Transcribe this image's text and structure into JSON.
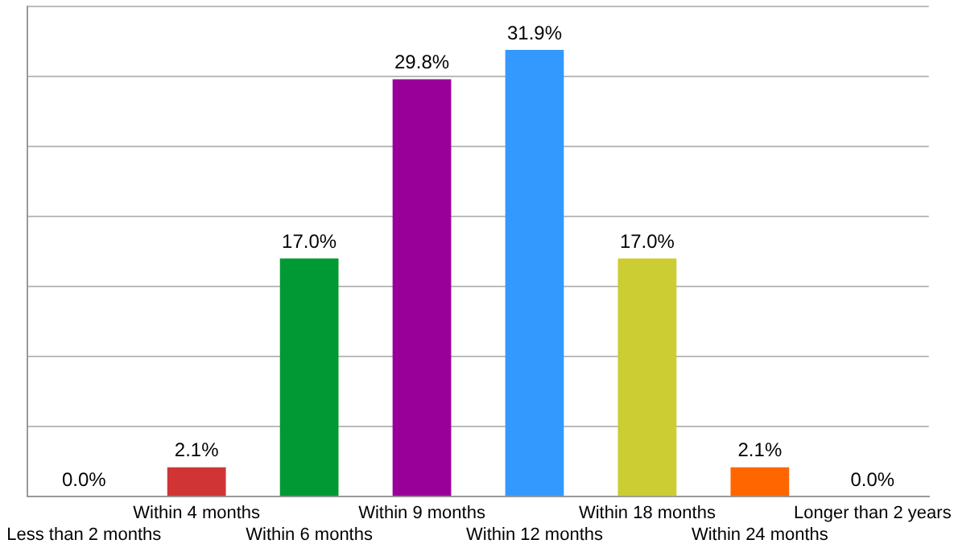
{
  "chart_data": {
    "type": "bar",
    "categories": [
      "Less than 2 months",
      "Within 4 months",
      "Within 6 months",
      "Within 9 months",
      "Within 12 months",
      "Within 18 months",
      "Within 24 months",
      "Longer than 2 years"
    ],
    "values": [
      0.0,
      2.1,
      17.0,
      29.8,
      31.9,
      17.0,
      2.1,
      0.0
    ],
    "value_labels": [
      "0.0%",
      "2.1%",
      "17.0%",
      "29.8%",
      "31.9%",
      "17.0%",
      "2.1%",
      "0.0%"
    ],
    "colors": [
      "#cccccc",
      "#d03434",
      "#009933",
      "#990099",
      "#3399ff",
      "#cccc33",
      "#ff6600",
      "#cccccc"
    ],
    "grid": "y",
    "legend": false
  }
}
